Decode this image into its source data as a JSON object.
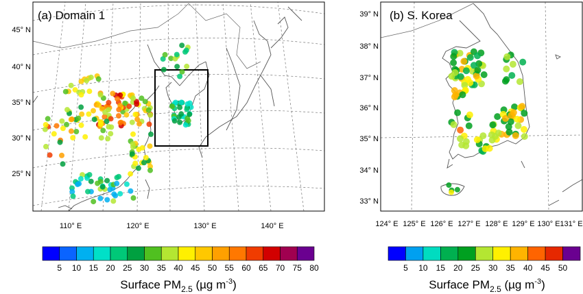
{
  "panel_a": {
    "title": "(a) Domain 1",
    "lat_labels": [
      "45° N",
      "40° N",
      "35° N",
      "30° N",
      "25° N"
    ],
    "lon_labels": [
      "110° E",
      "120° E",
      "130° E",
      "140° E"
    ],
    "colorbar": {
      "ticks": [
        "5",
        "10",
        "15",
        "20",
        "25",
        "30",
        "35",
        "40",
        "45",
        "50",
        "55",
        "60",
        "65",
        "70",
        "75",
        "80"
      ],
      "colors": [
        "#0000ff",
        "#0a64ff",
        "#00b0f0",
        "#00e0c8",
        "#00c878",
        "#00a040",
        "#50c020",
        "#b4e632",
        "#fff000",
        "#ffc800",
        "#ffa000",
        "#ff7800",
        "#f03c00",
        "#d20000",
        "#a00050",
        "#6a0090"
      ],
      "title_main": "Surface PM",
      "title_sub": "2.5",
      "title_units": " (µg m",
      "title_exp": "-3",
      "title_close": ")"
    }
  },
  "panel_b": {
    "title": "(b) S. Korea",
    "lat_labels": [
      "39° N",
      "38° N",
      "37° N",
      "36° N",
      "35° N",
      "34° N",
      "33° N"
    ],
    "lon_labels": [
      "124° E",
      "125° E",
      "126° E",
      "127° E",
      "128° E",
      "129° E",
      "130° E",
      "131° E"
    ],
    "colorbar": {
      "ticks": [
        "5",
        "10",
        "15",
        "20",
        "25",
        "30",
        "35",
        "40",
        "45",
        "50"
      ],
      "colors": [
        "#0000ff",
        "#00a0f0",
        "#00dcc0",
        "#00b050",
        "#00a020",
        "#b4e632",
        "#fff000",
        "#ffb400",
        "#ff6400",
        "#e62800",
        "#6a0090"
      ],
      "title_main": "Surface PM",
      "title_sub": "2.5",
      "title_units": " (µg m",
      "title_exp": "-3",
      "title_close": ")"
    }
  }
}
